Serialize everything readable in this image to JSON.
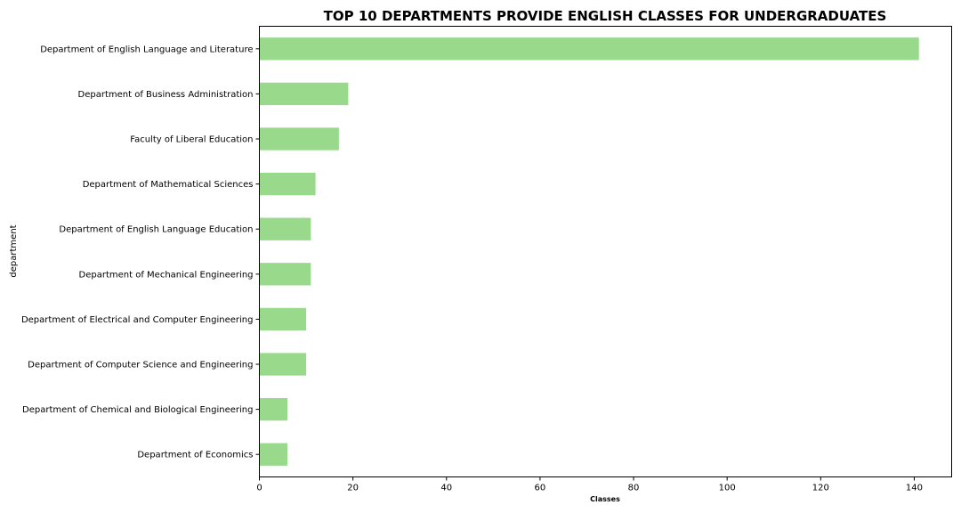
{
  "chart_data": {
    "type": "bar",
    "orientation": "horizontal",
    "title": "TOP 10 DEPARTMENTS PROVIDE ENGLISH CLASSES FOR UNDERGRADUATES",
    "xlabel": "Classes",
    "ylabel": "department",
    "categories": [
      "Department of English Language and Literature",
      "Department of Business Administration",
      "Faculty of Liberal Education",
      "Department of Mathematical Sciences",
      "Department of English Language Education",
      "Department of Mechanical Engineering",
      "Department of Electrical and Computer Engineering",
      "Department of Computer Science and Engineering",
      "Department of Chemical and Biological Engineering",
      "Department of Economics"
    ],
    "values": [
      141,
      19,
      17,
      12,
      11,
      11,
      10,
      10,
      6,
      6
    ],
    "xlim": [
      0,
      148
    ],
    "xticks": [
      0,
      20,
      40,
      60,
      80,
      100,
      120,
      140
    ],
    "bar_color": "#99d98c",
    "grid": false,
    "legend": "none"
  }
}
